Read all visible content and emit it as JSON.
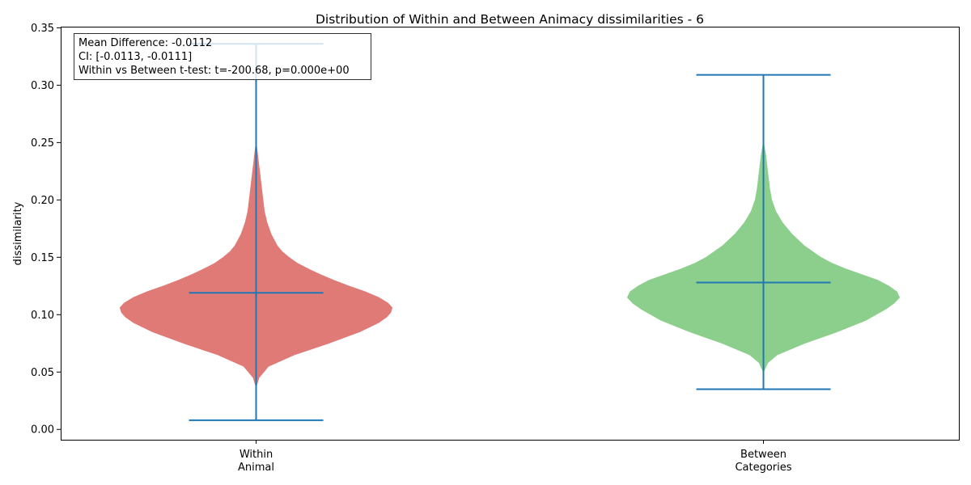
{
  "chart_data": {
    "type": "violin",
    "title": "Distribution of Within and Between Animacy dissimilarities - 6",
    "ylabel": "dissimilarity",
    "xlabel": "",
    "ylim": [
      -0.009,
      0.351
    ],
    "yticks": [
      "0.00",
      "0.05",
      "0.10",
      "0.15",
      "0.20",
      "0.25",
      "0.30",
      "0.35"
    ],
    "grid": false,
    "categories": [
      {
        "line1": "Within",
        "line2": "Animal"
      },
      {
        "line1": "Between",
        "line2": "Categories"
      }
    ],
    "violins": [
      {
        "category": "Within Animal",
        "color": "#e07a76",
        "min": 0.008,
        "max": 0.336,
        "mean": 0.119,
        "density_top": 0.25,
        "density_bottom": 0.037,
        "profile": [
          [
            0.037,
            0.0
          ],
          [
            0.045,
            0.02
          ],
          [
            0.055,
            0.09
          ],
          [
            0.065,
            0.28
          ],
          [
            0.075,
            0.53
          ],
          [
            0.085,
            0.76
          ],
          [
            0.093,
            0.9
          ],
          [
            0.098,
            0.96
          ],
          [
            0.102,
            0.99
          ],
          [
            0.106,
            1.0
          ],
          [
            0.11,
            0.97
          ],
          [
            0.115,
            0.9
          ],
          [
            0.12,
            0.8
          ],
          [
            0.125,
            0.68
          ],
          [
            0.13,
            0.57
          ],
          [
            0.135,
            0.47
          ],
          [
            0.14,
            0.38
          ],
          [
            0.145,
            0.3
          ],
          [
            0.15,
            0.24
          ],
          [
            0.155,
            0.19
          ],
          [
            0.16,
            0.155
          ],
          [
            0.17,
            0.11
          ],
          [
            0.18,
            0.08
          ],
          [
            0.19,
            0.06
          ],
          [
            0.2,
            0.05
          ],
          [
            0.21,
            0.04
          ],
          [
            0.22,
            0.03
          ],
          [
            0.23,
            0.02
          ],
          [
            0.24,
            0.01
          ],
          [
            0.25,
            0.0
          ]
        ]
      },
      {
        "category": "Between Categories",
        "color": "#8ccf8c",
        "min": 0.035,
        "max": 0.309,
        "mean": 0.128,
        "density_top": 0.25,
        "density_bottom": 0.05,
        "profile": [
          [
            0.05,
            0.0
          ],
          [
            0.058,
            0.03
          ],
          [
            0.065,
            0.1
          ],
          [
            0.075,
            0.3
          ],
          [
            0.085,
            0.54
          ],
          [
            0.095,
            0.75
          ],
          [
            0.105,
            0.9
          ],
          [
            0.11,
            0.96
          ],
          [
            0.115,
            1.0
          ],
          [
            0.12,
            0.98
          ],
          [
            0.125,
            0.92
          ],
          [
            0.13,
            0.84
          ],
          [
            0.135,
            0.72
          ],
          [
            0.14,
            0.6
          ],
          [
            0.145,
            0.5
          ],
          [
            0.15,
            0.42
          ],
          [
            0.16,
            0.3
          ],
          [
            0.17,
            0.21
          ],
          [
            0.18,
            0.14
          ],
          [
            0.19,
            0.09
          ],
          [
            0.2,
            0.06
          ],
          [
            0.21,
            0.045
          ],
          [
            0.22,
            0.035
          ],
          [
            0.23,
            0.025
          ],
          [
            0.24,
            0.015
          ],
          [
            0.25,
            0.0
          ]
        ]
      }
    ],
    "line_color": "#1f77b4",
    "annotation": {
      "line1": "Mean Difference: -0.0112",
      "line2": "CI: [-0.0113, -0.0111]",
      "line3": "Within vs Between t-test: t=-200.68, p=0.000e+00"
    }
  }
}
